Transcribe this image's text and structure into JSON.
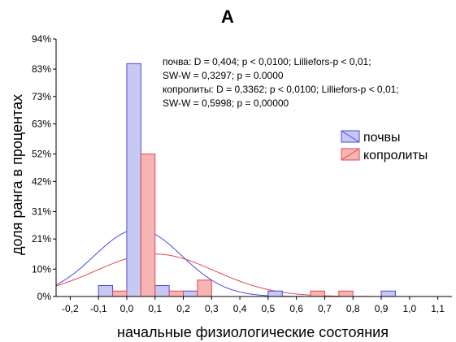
{
  "chart_data": {
    "type": "bar",
    "title": "А",
    "xlabel": "начальные физиологические состояния",
    "ylabel": "доля ранга в процентах",
    "xlim": [
      -0.25,
      1.15
    ],
    "ylim": [
      0,
      94
    ],
    "x_ticks": [
      -0.2,
      -0.1,
      0.0,
      0.1,
      0.2,
      0.3,
      0.4,
      0.5,
      0.6,
      0.7,
      0.8,
      0.9,
      1.0,
      1.1
    ],
    "x_tick_labels": [
      "-0,2",
      "-0,1",
      "0,0",
      "0,1",
      "0,2",
      "0,3",
      "0,4",
      "0,5",
      "0,6",
      "0,7",
      "0,8",
      "0,9",
      "1,0",
      "1,1"
    ],
    "y_ticks": [
      0,
      10,
      21,
      31,
      42,
      52,
      63,
      73,
      83,
      94
    ],
    "y_tick_labels": [
      "0%",
      "10%",
      "21%",
      "31%",
      "42%",
      "52%",
      "63%",
      "73%",
      "83%",
      "94%"
    ],
    "bin_width": 0.05,
    "series": [
      {
        "name": "почвы",
        "color": "#4a4ae0",
        "fill": "#c8c8f4",
        "bins": [
          {
            "x": -0.075,
            "value": 4
          },
          {
            "x": 0.025,
            "value": 85
          },
          {
            "x": 0.125,
            "value": 4
          },
          {
            "x": 0.225,
            "value": 2
          },
          {
            "x": 0.525,
            "value": 2
          },
          {
            "x": 0.925,
            "value": 2
          }
        ],
        "normal_fit": {
          "mean": 0.04,
          "sd": 0.155,
          "peak": 24.5
        }
      },
      {
        "name": "копролиты",
        "color": "#e04a4a",
        "fill": "#f6b4b4",
        "bins": [
          {
            "x": -0.025,
            "value": 2
          },
          {
            "x": 0.075,
            "value": 52
          },
          {
            "x": 0.175,
            "value": 2
          },
          {
            "x": 0.275,
            "value": 6
          },
          {
            "x": 0.675,
            "value": 2
          },
          {
            "x": 0.775,
            "value": 2
          }
        ],
        "normal_fit": {
          "mean": 0.1,
          "sd": 0.21,
          "peak": 15.5
        }
      }
    ],
    "stats_text": [
      "почва:   D = 0,404; p < 0,0100; Lilliefors-p < 0,01;",
      "SW-W = 0,3297; p = 0.0000",
      "копролиты:   D = 0,3362; p < 0,0100; Lilliefors-p < 0,01;",
      "SW-W = 0,5998; p = 0,00000"
    ],
    "legend_position": "right"
  }
}
